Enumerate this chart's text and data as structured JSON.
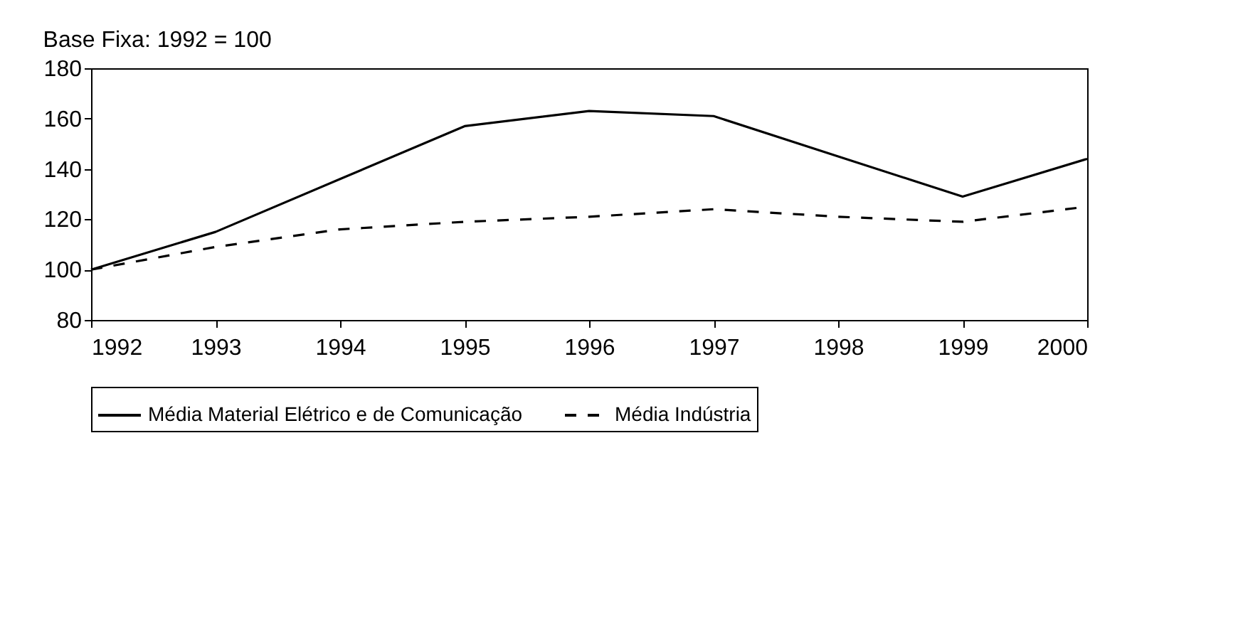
{
  "chart_data": {
    "type": "line",
    "title": "Base Fixa: 1992 = 100",
    "x": [
      1992,
      1993,
      1994,
      1995,
      1996,
      1997,
      1998,
      1999,
      2000
    ],
    "series": [
      {
        "name": "Média Material Elétrico e de Comunicação",
        "color": "#000000",
        "values": [
          100,
          115,
          136,
          157,
          163,
          161,
          145,
          129,
          144
        ],
        "line_style": "solid"
      },
      {
        "name": "Média Indústria",
        "color": "#000000",
        "values": [
          100,
          109,
          116,
          119,
          121,
          124,
          121,
          119,
          125
        ],
        "line_style": "dashed"
      }
    ],
    "xlim": [
      1992,
      2000
    ],
    "xticks": [
      1992,
      1993,
      1994,
      1995,
      1996,
      1997,
      1998,
      1999,
      2000
    ],
    "ylim": [
      80,
      180
    ],
    "yticks": [
      80,
      100,
      120,
      140,
      160,
      180
    ],
    "grid": false,
    "legend": "bottom",
    "marker": "none"
  }
}
